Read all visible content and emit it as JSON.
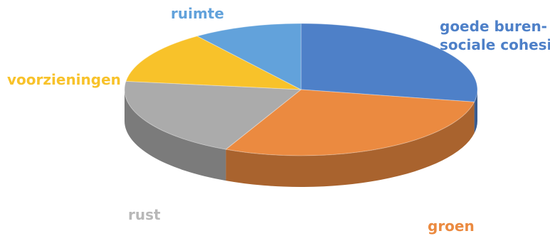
{
  "chart_data": {
    "type": "pie",
    "title": "",
    "style": "3d",
    "slices": [
      {
        "label": "goede buren-sociale cohesie",
        "label_lines": [
          "goede buren-",
          "sociale cohesie"
        ],
        "value": 28,
        "color": "#4e80c8"
      },
      {
        "label": "groen",
        "label_lines": [
          "groen"
        ],
        "value": 29,
        "color": "#eb8a40"
      },
      {
        "label": "rust",
        "label_lines": [
          "rust"
        ],
        "value": 20,
        "color": "#ababab"
      },
      {
        "label": "voorzieningen",
        "label_lines": [
          "voorzieningen"
        ],
        "value": 13,
        "color": "#f8c22a"
      },
      {
        "label": "ruimte",
        "label_lines": [
          "ruimte"
        ],
        "value": 10,
        "color": "#62a2db"
      }
    ],
    "label_colors": {
      "goede buren-sociale cohesie": "#4e80c8",
      "groen": "#eb8a40",
      "rust": "#b8b8b8",
      "voorzieningen": "#f8c22a",
      "ruimte": "#62a2db"
    }
  }
}
